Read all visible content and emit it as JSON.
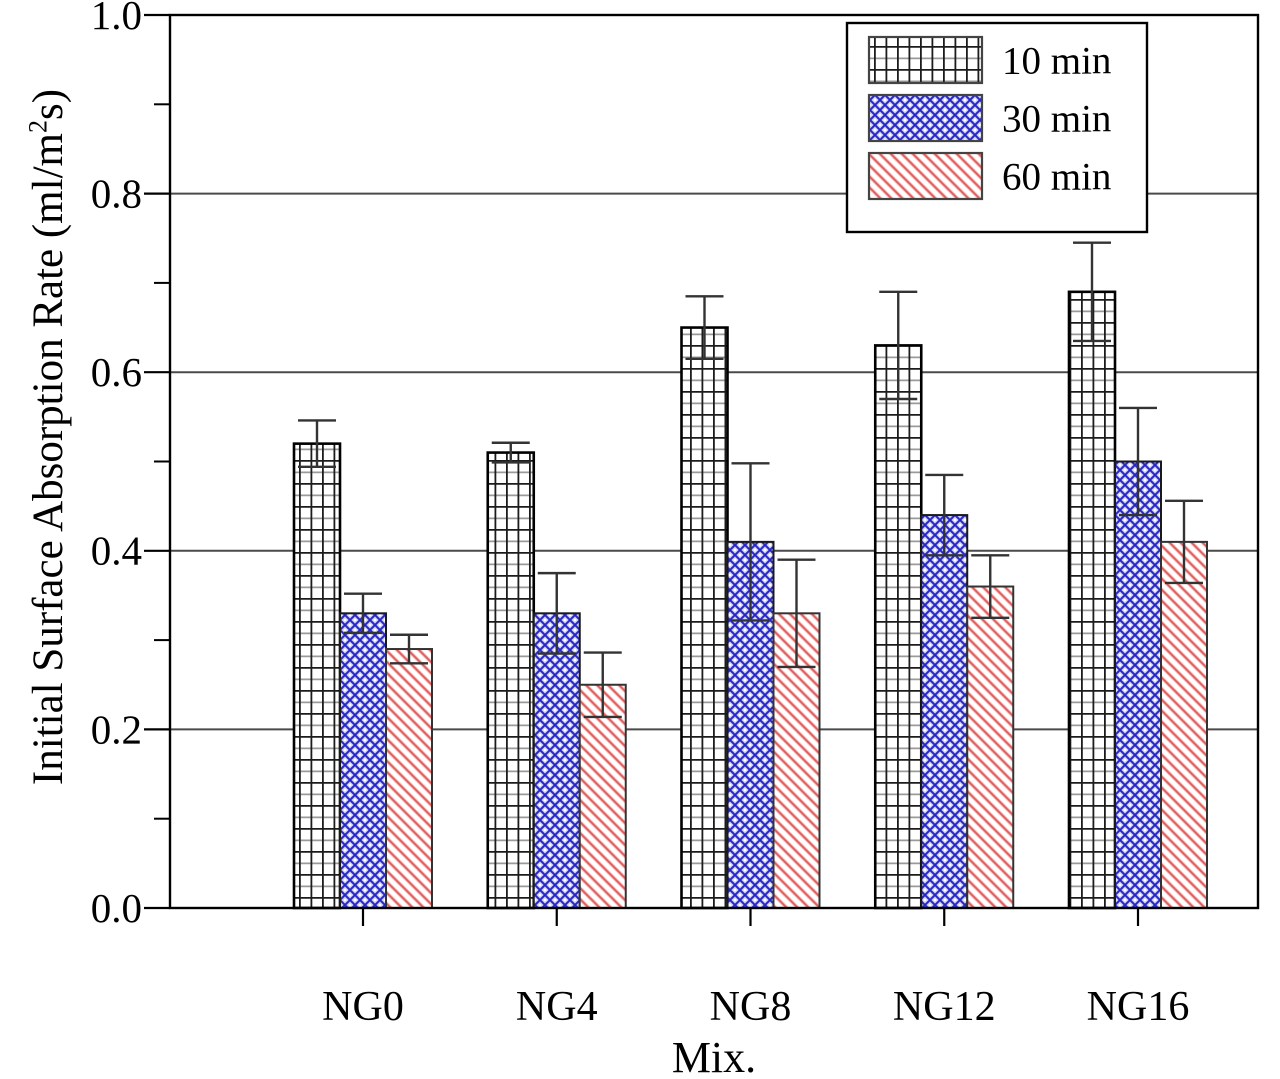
{
  "figure": {
    "background": "#ffffff"
  },
  "y_axis": {
    "title_prefix": "Initial Surface Absorption Rate (ml/m",
    "title_sup": "2",
    "title_suffix": "s)",
    "tick_labels": [
      "0.0",
      "0.2",
      "0.4",
      "0.6",
      "0.8",
      "1.0"
    ]
  },
  "x_axis": {
    "title": "Mix.",
    "categories": [
      "NG0",
      "NG4",
      "NG8",
      "NG12",
      "NG16"
    ]
  },
  "legend": {
    "items": [
      {
        "label": "10 min",
        "pattern": "grid"
      },
      {
        "label": "30 min",
        "pattern": "cross"
      },
      {
        "label": "60 min",
        "pattern": "diag"
      }
    ]
  },
  "colors": {
    "grid_dark": "#1c1c1c",
    "grid_gray": "#9a9a9a",
    "cross_dark": "#2525c8",
    "cross_light": "#c9c9f2",
    "diag_dark": "#dd5c5c",
    "diag_light": "#f6c0c0",
    "axis": "#000000",
    "gridline": "#4a4a4a",
    "error": "#333333"
  },
  "chart_data": {
    "type": "bar",
    "title": "",
    "xlabel": "Mix.",
    "ylabel": "Initial Surface Absorption Rate (ml/m^2 s)",
    "categories": [
      "NG0",
      "NG4",
      "NG8",
      "NG12",
      "NG16"
    ],
    "series": [
      {
        "name": "10 min",
        "pattern": "grid",
        "values": [
          0.52,
          0.51,
          0.65,
          0.63,
          0.69
        ],
        "errors": [
          0.026,
          0.011,
          0.035,
          0.06,
          0.055
        ]
      },
      {
        "name": "30 min",
        "pattern": "cross",
        "values": [
          0.33,
          0.33,
          0.41,
          0.44,
          0.5
        ],
        "errors": [
          0.022,
          0.045,
          0.088,
          0.045,
          0.06
        ]
      },
      {
        "name": "60 min",
        "pattern": "diag",
        "values": [
          0.29,
          0.25,
          0.33,
          0.36,
          0.41
        ],
        "errors": [
          0.016,
          0.036,
          0.06,
          0.035,
          0.046
        ]
      }
    ],
    "ylim": [
      0,
      1.0
    ],
    "ytick_step": 0.2,
    "yminor_step": 0.1,
    "ytick_values": [
      0.0,
      0.2,
      0.4,
      0.6,
      0.8,
      1.0
    ],
    "yminor_values": [
      0.1,
      0.3,
      0.5,
      0.7,
      0.9
    ],
    "grid": true,
    "gridline_values": [
      0.2,
      0.4,
      0.6,
      0.8
    ],
    "legend_position": "top-right"
  }
}
